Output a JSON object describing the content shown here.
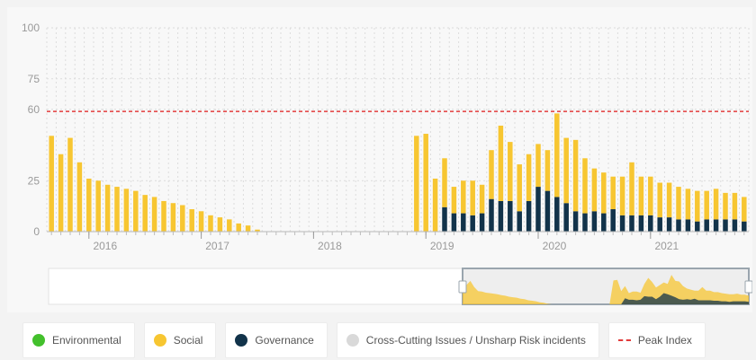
{
  "chart_data": {
    "type": "bar",
    "stacked": true,
    "ylim": [
      0,
      100
    ],
    "yticks": [
      0,
      25,
      60,
      75,
      100
    ],
    "xticks": [
      "2016",
      "2017",
      "2018",
      "2019",
      "2020",
      "2021"
    ],
    "peak_index": 59,
    "grid": true,
    "categories": [
      "2015-09",
      "2015-10",
      "2015-11",
      "2015-12",
      "2016-01",
      "2016-02",
      "2016-03",
      "2016-04",
      "2016-05",
      "2016-06",
      "2016-07",
      "2016-08",
      "2016-09",
      "2016-10",
      "2016-11",
      "2016-12",
      "2017-01",
      "2017-02",
      "2017-03",
      "2017-04",
      "2017-05",
      "2017-06",
      "2017-07",
      "2017-08",
      "2017-09",
      "2017-10",
      "2017-11",
      "2017-12",
      "2018-01",
      "2018-02",
      "2018-03",
      "2018-04",
      "2018-05",
      "2018-06",
      "2018-07",
      "2018-08",
      "2018-09",
      "2018-10",
      "2018-11",
      "2018-12",
      "2019-01",
      "2019-02",
      "2019-03",
      "2019-04",
      "2019-05",
      "2019-06",
      "2019-07",
      "2019-08",
      "2019-09",
      "2019-10",
      "2019-11",
      "2019-12",
      "2020-01",
      "2020-02",
      "2020-03",
      "2020-04",
      "2020-05",
      "2020-06",
      "2020-07",
      "2020-08",
      "2020-09",
      "2020-10",
      "2020-11",
      "2020-12",
      "2021-01",
      "2021-02",
      "2021-03",
      "2021-04",
      "2021-05",
      "2021-06",
      "2021-07",
      "2021-08",
      "2021-09",
      "2021-10",
      "2021-11"
    ],
    "series": [
      {
        "name": "Environmental",
        "color": "#43c02c",
        "values": [
          0,
          0,
          0,
          0,
          0,
          0,
          0,
          0,
          0,
          0,
          0,
          0,
          0,
          0,
          0,
          0,
          0,
          0,
          0,
          0,
          0,
          0,
          0,
          0,
          0,
          0,
          0,
          0,
          0,
          0,
          0,
          0,
          0,
          0,
          0,
          0,
          0,
          0,
          0,
          0,
          0,
          0,
          0,
          0,
          0,
          0,
          0,
          0,
          0,
          0,
          0,
          0,
          0,
          0,
          0,
          0,
          0,
          0,
          0,
          0,
          0,
          0,
          0,
          0,
          0,
          0,
          0,
          0,
          0,
          0,
          0,
          0,
          0,
          0,
          0
        ]
      },
      {
        "name": "Social",
        "color": "#f7c631",
        "values": [
          47,
          38,
          46,
          34,
          26,
          25,
          23,
          22,
          21,
          20,
          18,
          17,
          15,
          14,
          13,
          11,
          10,
          8,
          7,
          6,
          4,
          3,
          1,
          0,
          0,
          0,
          0,
          0,
          0,
          0,
          0,
          0,
          0,
          0,
          0,
          0,
          0,
          0,
          0,
          47,
          48,
          26,
          24,
          13,
          16,
          17,
          14,
          24,
          37,
          29,
          23,
          23,
          21,
          20,
          41,
          32,
          35,
          27,
          21,
          20,
          16,
          19,
          26,
          19,
          19,
          17,
          17,
          16,
          15,
          15,
          14,
          15,
          13,
          13,
          12
        ]
      },
      {
        "name": "Governance",
        "color": "#12334a",
        "values": [
          0,
          0,
          0,
          0,
          0,
          0,
          0,
          0,
          0,
          0,
          0,
          0,
          0,
          0,
          0,
          0,
          0,
          0,
          0,
          0,
          0,
          0,
          0,
          0,
          0,
          0,
          0,
          0,
          0,
          0,
          0,
          0,
          0,
          0,
          0,
          0,
          0,
          0,
          0,
          0,
          0,
          0,
          12,
          9,
          9,
          8,
          9,
          16,
          15,
          15,
          10,
          15,
          22,
          20,
          17,
          14,
          10,
          9,
          10,
          9,
          11,
          8,
          8,
          8,
          8,
          7,
          7,
          6,
          6,
          5,
          6,
          6,
          6,
          6,
          5
        ]
      },
      {
        "name": "Cross-Cutting Issues / Unsharp Risk incidents",
        "color": "#d9d9d9",
        "values": [
          0,
          0,
          0,
          0,
          0,
          0,
          0,
          0,
          0,
          0,
          0,
          0,
          0,
          0,
          0,
          0,
          0,
          0,
          0,
          0,
          0,
          0,
          0,
          0,
          0,
          0,
          0,
          0,
          0,
          0,
          0,
          0,
          0,
          0,
          0,
          0,
          0,
          0,
          0,
          0,
          0,
          0,
          0,
          0,
          0,
          0,
          0,
          0,
          0,
          0,
          0,
          0,
          0,
          0,
          0,
          0,
          0,
          0,
          0,
          0,
          0,
          0,
          0,
          0,
          0,
          0,
          0,
          0,
          0,
          0,
          0,
          0,
          0,
          0,
          0
        ]
      }
    ]
  },
  "legend": {
    "items": [
      {
        "label": "Environmental",
        "color": "#43c02c"
      },
      {
        "label": "Social",
        "color": "#f7c631"
      },
      {
        "label": "Governance",
        "color": "#12334a"
      },
      {
        "label": "Cross-Cutting Issues / Unsharp Risk incidents",
        "color": "#d9d9d9"
      },
      {
        "label": "Peak Index",
        "color": "#e23b3b"
      }
    ]
  }
}
